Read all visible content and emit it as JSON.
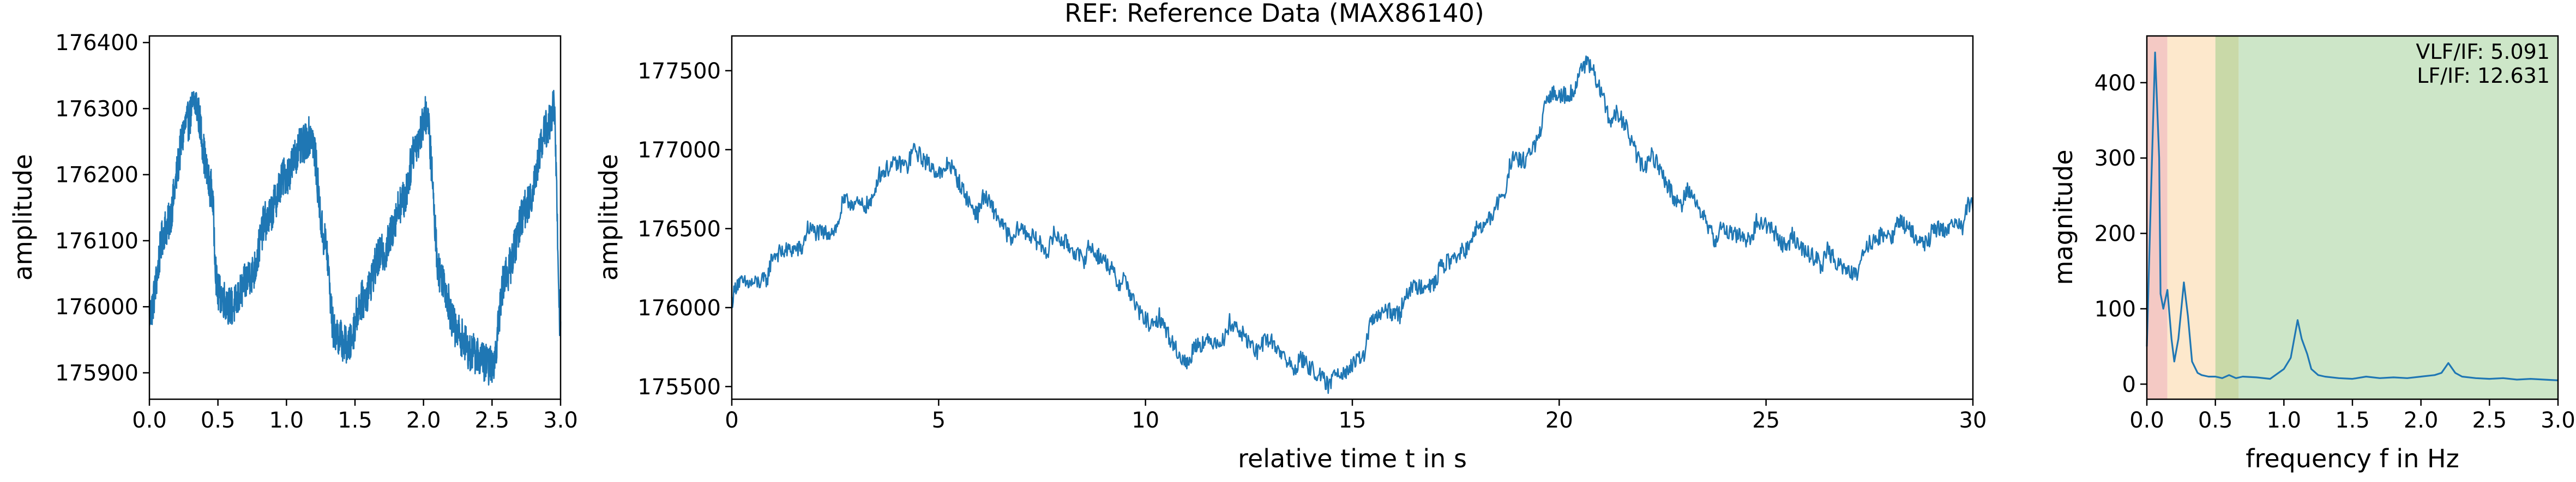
{
  "figure": {
    "title": "REF: Reference Data (MAX86140)",
    "line_color": "#1f77b4"
  },
  "chart_data": [
    {
      "type": "line",
      "id": "left",
      "xlabel": "",
      "ylabel": "amplitude",
      "xlim": [
        0.0,
        3.0
      ],
      "ylim": [
        175860,
        176410
      ],
      "xticks": [
        "0.0",
        "0.5",
        "1.0",
        "1.5",
        "2.0",
        "2.5",
        "3.0"
      ],
      "xtick_values": [
        0.0,
        0.5,
        1.0,
        1.5,
        2.0,
        2.5,
        3.0
      ],
      "yticks": [
        "175900",
        "176000",
        "176100",
        "176200",
        "176300",
        "176400"
      ],
      "ytick_values": [
        175900,
        176000,
        176100,
        176200,
        176300,
        176400
      ],
      "series": [
        {
          "noise": 30,
          "x": [
            0.0,
            0.12,
            0.28,
            0.33,
            0.45,
            0.5,
            0.6,
            0.75,
            0.85,
            1.0,
            1.1,
            1.18,
            1.28,
            1.35,
            1.45,
            1.55,
            1.7,
            1.85,
            1.95,
            2.02,
            2.12,
            2.25,
            2.35,
            2.5,
            2.6,
            2.75,
            2.9,
            2.95,
            3.0
          ],
          "y": [
            175990,
            176120,
            176280,
            176310,
            176180,
            176020,
            176000,
            176050,
            176130,
            176200,
            176240,
            176260,
            176100,
            175960,
            175940,
            176010,
            176080,
            176160,
            176250,
            176290,
            176050,
            175960,
            175930,
            175910,
            176050,
            176150,
            176270,
            176300,
            175970
          ]
        }
      ]
    },
    {
      "type": "line",
      "id": "middle",
      "xlabel": "relative time t in s",
      "ylabel": "amplitude",
      "xlim": [
        0,
        30
      ],
      "ylim": [
        175420,
        177720
      ],
      "xticks": [
        "0",
        "5",
        "10",
        "15",
        "20",
        "25",
        "30"
      ],
      "xtick_values": [
        0,
        5,
        10,
        15,
        20,
        25,
        30
      ],
      "yticks": [
        "175500",
        "176000",
        "176500",
        "177000",
        "177500"
      ],
      "ytick_values": [
        175500,
        176000,
        176500,
        177000,
        177500
      ],
      "series": [
        {
          "noise": 55,
          "beat_amp": 120,
          "beat_period": 0.85,
          "x": [
            0,
            2,
            3,
            4.2,
            5,
            6,
            7,
            8,
            9,
            10,
            11,
            12,
            13,
            14,
            14.6,
            16,
            17,
            18,
            19,
            20,
            20.7,
            21.5,
            22,
            23,
            24,
            25,
            26,
            27,
            28,
            29,
            30
          ],
          "y": [
            176100,
            176450,
            176650,
            176950,
            176900,
            176650,
            176450,
            176400,
            176300,
            175950,
            175700,
            175850,
            175750,
            175600,
            175550,
            176000,
            176200,
            176450,
            176900,
            177350,
            177500,
            177150,
            176950,
            176700,
            176450,
            176500,
            176350,
            176250,
            176500,
            176450,
            176600
          ]
        }
      ]
    },
    {
      "type": "line",
      "id": "right",
      "xlabel": "frequency f in Hz",
      "ylabel": "magnitude",
      "xlim": [
        0.0,
        3.0
      ],
      "ylim": [
        -20,
        462
      ],
      "xticks": [
        "0.0",
        "0.5",
        "1.0",
        "1.5",
        "2.0",
        "2.5",
        "3.0"
      ],
      "xtick_values": [
        0.0,
        0.5,
        1.0,
        1.5,
        2.0,
        2.5,
        3.0
      ],
      "yticks": [
        "0",
        "100",
        "200",
        "300",
        "400"
      ],
      "ytick_values": [
        0,
        100,
        200,
        300,
        400
      ],
      "bands": [
        {
          "from": 0.0,
          "to": 0.15,
          "color": "#f4c9c4"
        },
        {
          "from": 0.15,
          "to": 0.5,
          "color": "#fde8cc"
        },
        {
          "from": 0.5,
          "to": 0.67,
          "color": "#c9d9a8"
        },
        {
          "from": 0.67,
          "to": 3.0,
          "color": "#cde6c8"
        }
      ],
      "annotations": [
        "VLF/IF: 5.091",
        "LF/IF: 12.631"
      ],
      "series": [
        {
          "x": [
            0.0,
            0.03,
            0.06,
            0.09,
            0.1,
            0.12,
            0.15,
            0.18,
            0.2,
            0.23,
            0.27,
            0.3,
            0.33,
            0.37,
            0.4,
            0.45,
            0.5,
            0.55,
            0.6,
            0.65,
            0.7,
            0.8,
            0.9,
            1.0,
            1.05,
            1.1,
            1.13,
            1.17,
            1.2,
            1.25,
            1.3,
            1.4,
            1.5,
            1.6,
            1.7,
            1.8,
            1.9,
            2.0,
            2.1,
            2.15,
            2.2,
            2.25,
            2.3,
            2.4,
            2.5,
            2.6,
            2.7,
            2.8,
            2.9,
            3.0
          ],
          "y": [
            50,
            250,
            440,
            300,
            120,
            100,
            125,
            60,
            30,
            60,
            135,
            90,
            30,
            15,
            12,
            10,
            10,
            8,
            12,
            8,
            10,
            9,
            7,
            20,
            35,
            85,
            60,
            40,
            20,
            12,
            10,
            8,
            7,
            10,
            8,
            9,
            8,
            10,
            12,
            15,
            28,
            15,
            10,
            8,
            7,
            8,
            6,
            7,
            6,
            5
          ]
        }
      ]
    }
  ]
}
